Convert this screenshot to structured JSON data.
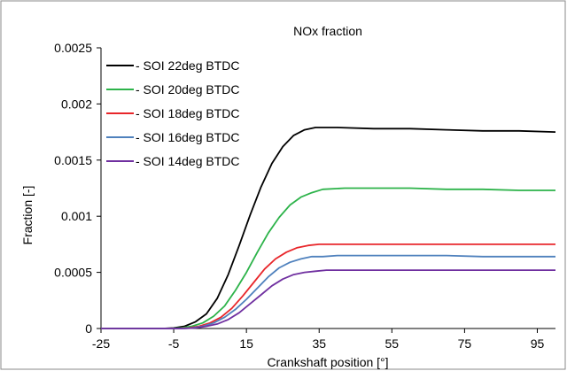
{
  "chart_data": {
    "type": "line",
    "title": "NOx fraction",
    "xlabel": "Crankshaft position [°]",
    "ylabel": "Fraction [-]",
    "xlim": [
      -25,
      100
    ],
    "ylim": [
      0,
      0.0025
    ],
    "xticks": [
      "-25",
      "-5",
      "15",
      "35",
      "55",
      "75",
      "95"
    ],
    "yticks": [
      "0",
      "0.0005",
      "0.001",
      "0.0015",
      "0.002",
      "0.0025"
    ],
    "grid": false,
    "legend_position": "top-left",
    "series": [
      {
        "name": "- SOI 22deg BTDC",
        "color": "#000000",
        "x": [
          -25,
          -8,
          -5,
          -2,
          1,
          4,
          7,
          10,
          13,
          16,
          19,
          22,
          25,
          28,
          31,
          34,
          40,
          50,
          60,
          70,
          80,
          90,
          100
        ],
        "y": [
          0,
          0,
          5e-06,
          2e-05,
          6e-05,
          0.00013,
          0.00027,
          0.00048,
          0.00074,
          0.00101,
          0.00126,
          0.00147,
          0.00162,
          0.00172,
          0.00177,
          0.00179,
          0.00179,
          0.00178,
          0.00178,
          0.00177,
          0.00176,
          0.00176,
          0.00175
        ]
      },
      {
        "name": "- SOI 20deg BTDC",
        "color": "#2db34a",
        "x": [
          -25,
          -6,
          -3,
          0,
          3,
          6,
          9,
          12,
          15,
          18,
          21,
          24,
          27,
          30,
          33,
          36,
          42,
          50,
          60,
          70,
          80,
          90,
          100
        ],
        "y": [
          0,
          0,
          5e-06,
          2e-05,
          5e-05,
          0.00011,
          0.0002,
          0.00034,
          0.0005,
          0.00068,
          0.00085,
          0.00099,
          0.0011,
          0.00117,
          0.00121,
          0.00124,
          0.00125,
          0.00125,
          0.00125,
          0.00124,
          0.00124,
          0.00123,
          0.00123
        ]
      },
      {
        "name": "- SOI 18deg BTDC",
        "color": "#e8262a",
        "x": [
          -25,
          -4,
          -1,
          2,
          5,
          8,
          11,
          14,
          17,
          20,
          23,
          26,
          29,
          32,
          35,
          40,
          50,
          60,
          70,
          80,
          90,
          100
        ],
        "y": [
          0,
          0,
          5e-06,
          2e-05,
          5e-05,
          0.0001,
          0.00018,
          0.00029,
          0.00041,
          0.00053,
          0.00062,
          0.00068,
          0.00072,
          0.00074,
          0.00075,
          0.00075,
          0.00075,
          0.00075,
          0.00075,
          0.00075,
          0.00075,
          0.00075
        ]
      },
      {
        "name": "- SOI 16deg BTDC",
        "color": "#4f81bd",
        "x": [
          -25,
          -3,
          0,
          3,
          6,
          9,
          12,
          15,
          18,
          21,
          24,
          27,
          30,
          33,
          36,
          40,
          50,
          60,
          70,
          80,
          90,
          100
        ],
        "y": [
          0,
          0,
          5e-06,
          2e-05,
          5e-05,
          0.0001,
          0.00017,
          0.00026,
          0.00036,
          0.00046,
          0.00054,
          0.00059,
          0.00062,
          0.00064,
          0.00064,
          0.00065,
          0.00065,
          0.00065,
          0.00065,
          0.00064,
          0.00064,
          0.00064
        ]
      },
      {
        "name": "- SOI 14deg BTDC",
        "color": "#7030a0",
        "x": [
          -25,
          -2,
          1,
          4,
          7,
          10,
          13,
          16,
          19,
          22,
          25,
          28,
          31,
          34,
          37,
          42,
          50,
          60,
          70,
          80,
          90,
          100
        ],
        "y": [
          0,
          0,
          5e-06,
          2e-05,
          4e-05,
          8e-05,
          0.00014,
          0.00022,
          0.0003,
          0.00038,
          0.00044,
          0.00048,
          0.0005,
          0.00051,
          0.00052,
          0.00052,
          0.00052,
          0.00052,
          0.00052,
          0.00052,
          0.00052,
          0.00052
        ]
      }
    ]
  }
}
